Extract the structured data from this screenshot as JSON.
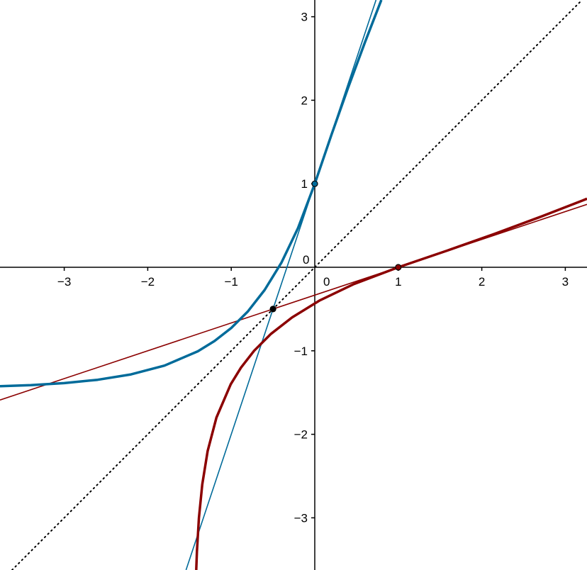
{
  "chart_data": {
    "type": "line",
    "title": "",
    "xlabel": "",
    "ylabel": "",
    "xlim": [
      -3.77,
      3.26
    ],
    "ylim": [
      -3.62,
      3.2
    ],
    "grid": false,
    "x_ticks": [
      "−3",
      "−2",
      "−1",
      "1",
      "2",
      "3"
    ],
    "x_tick_values": [
      -3,
      -2,
      -1,
      1,
      2,
      3
    ],
    "y_ticks": [
      "3",
      "2",
      "1",
      "−1",
      "−2",
      "−3"
    ],
    "y_tick_values": [
      3,
      2,
      1,
      -1,
      -2,
      -3
    ],
    "origin_labels": [
      "0",
      "0"
    ],
    "colors": {
      "blue": "#006b9a",
      "red": "#8b0000",
      "axis": "#000000"
    },
    "series": [
      {
        "color": "#006b9a",
        "style": "thick",
        "points": [
          [
            -3.8,
            -1.426
          ],
          [
            -3.4,
            -1.411
          ],
          [
            -3.0,
            -1.387
          ],
          [
            -2.6,
            -1.347
          ],
          [
            -2.2,
            -1.283
          ],
          [
            -1.8,
            -1.177
          ],
          [
            -1.4,
            -1.006
          ],
          [
            -1.2,
            -0.883
          ],
          [
            -1.0,
            -0.727
          ],
          [
            -0.8,
            -0.527
          ],
          [
            -0.6,
            -0.272
          ],
          [
            -0.4,
            0.054
          ],
          [
            -0.2,
            0.47
          ],
          [
            0,
            1
          ],
          [
            0.2,
            1.588
          ],
          [
            0.4,
            2.152
          ],
          [
            0.6,
            2.692
          ],
          [
            0.8,
            3.208
          ],
          [
            0.9,
            3.457
          ]
        ]
      },
      {
        "color": "#8b0000",
        "style": "thick",
        "points": [
          [
            -1.426,
            -3.8
          ],
          [
            -1.411,
            -3.4
          ],
          [
            -1.387,
            -3.0
          ],
          [
            -1.347,
            -2.6
          ],
          [
            -1.283,
            -2.2
          ],
          [
            -1.177,
            -1.8
          ],
          [
            -1.006,
            -1.4
          ],
          [
            -0.883,
            -1.2
          ],
          [
            -0.727,
            -1.0
          ],
          [
            -0.527,
            -0.8
          ],
          [
            -0.272,
            -0.6
          ],
          [
            0.054,
            -0.4
          ],
          [
            0.47,
            -0.2
          ],
          [
            1,
            0
          ],
          [
            1.588,
            0.2
          ],
          [
            2.152,
            0.4
          ],
          [
            2.692,
            0.6
          ],
          [
            3.208,
            0.8
          ],
          [
            3.457,
            0.9
          ]
        ]
      },
      {
        "color": "#006b9a",
        "style": "thin",
        "slope": 3,
        "intercept": 1
      },
      {
        "color": "#8b0000",
        "style": "thin",
        "slope": 0.3333,
        "intercept": -0.3333
      },
      {
        "color": "#000000",
        "style": "dotted",
        "slope": 1,
        "intercept": 0
      }
    ],
    "points": [
      {
        "x": 0,
        "y": 1,
        "color": "#006b9a"
      },
      {
        "x": 1,
        "y": 0,
        "color": "#8b0000"
      },
      {
        "x": -0.5,
        "y": -0.5,
        "color": "#000000"
      }
    ]
  }
}
